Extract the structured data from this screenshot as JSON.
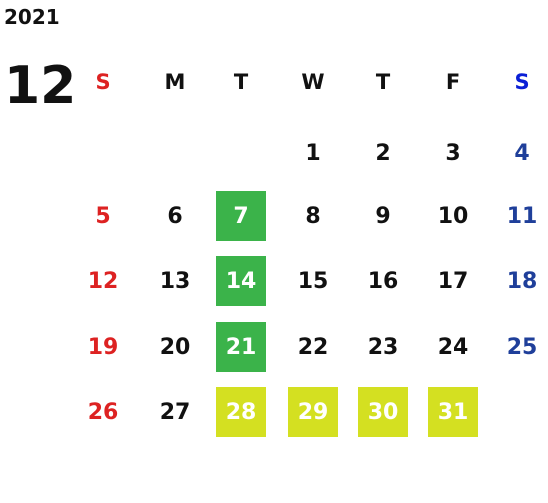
{
  "calendar": {
    "year": "2021",
    "month": "12",
    "weekday_headers": [
      "S",
      "M",
      "T",
      "W",
      "T",
      "F",
      "S"
    ],
    "weeks": [
      [
        "",
        "",
        "",
        "1",
        "2",
        "3",
        "4"
      ],
      [
        "5",
        "6",
        "7",
        "8",
        "9",
        "10",
        "11"
      ],
      [
        "12",
        "13",
        "14",
        "15",
        "16",
        "17",
        "18"
      ],
      [
        "19",
        "20",
        "21",
        "22",
        "23",
        "24",
        "25"
      ],
      [
        "26",
        "27",
        "28",
        "29",
        "30",
        "31",
        ""
      ]
    ],
    "highlighted_green": [
      "7",
      "14",
      "21"
    ],
    "highlighted_yellow": [
      "28",
      "29",
      "30",
      "31"
    ]
  },
  "colors": {
    "text_default": "#111111",
    "sunday": "#dd2222",
    "saturday": "#1f3f9a",
    "saturday_header": "#0a1fd6",
    "highlight_green": "#3bb34a",
    "highlight_yellow": "#d4e021",
    "highlight_text": "#ffffff"
  }
}
